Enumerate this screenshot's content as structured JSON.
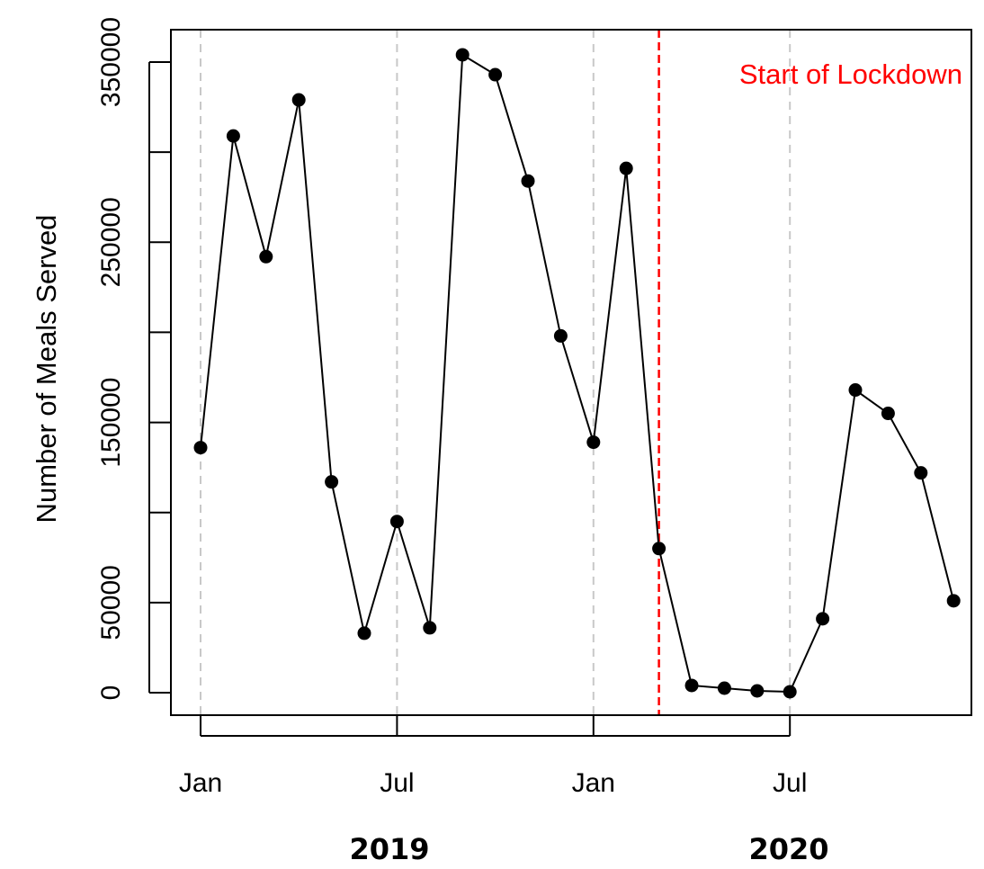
{
  "chart_data": {
    "type": "line",
    "title": "",
    "xlabel": "",
    "ylabel": "Number of Meals Served",
    "x": [
      "2019-01",
      "2019-02",
      "2019-03",
      "2019-04",
      "2019-05",
      "2019-06",
      "2019-07",
      "2019-08",
      "2019-09",
      "2019-10",
      "2019-11",
      "2019-12",
      "2020-01",
      "2020-02",
      "2020-03",
      "2020-04",
      "2020-05",
      "2020-06",
      "2020-07",
      "2020-08",
      "2020-09",
      "2020-10",
      "2020-11",
      "2020-12"
    ],
    "series": [
      {
        "values": [
          136000,
          309000,
          242000,
          329000,
          117000,
          33000,
          95000,
          36000,
          354000,
          343000,
          284000,
          198000,
          139000,
          291000,
          80000,
          4000,
          2500,
          1000,
          500,
          41000,
          168000,
          155000,
          122000,
          51000
        ]
      }
    ],
    "ylim": [
      -12500,
      367500
    ],
    "yticks": [
      0,
      50000,
      150000,
      250000,
      350000
    ],
    "ytick_labels": [
      "0",
      "50000",
      "150000",
      "250000",
      "350000"
    ],
    "xticks": [
      "2019-01",
      "2019-07",
      "2020-01",
      "2020-07"
    ],
    "xtick_labels": [
      "Jan",
      "Jul",
      "Jan",
      "Jul"
    ],
    "year_labels": [
      "2019",
      "2020"
    ],
    "vertical_gridlines": true,
    "annotation": {
      "text": "Start of Lockdown",
      "x": "2020-03",
      "color": "#ff0000"
    },
    "colors": {
      "line": "#000000",
      "points": "#000000",
      "grid": "#c8c8c8",
      "lockdown": "#ff0000"
    }
  }
}
